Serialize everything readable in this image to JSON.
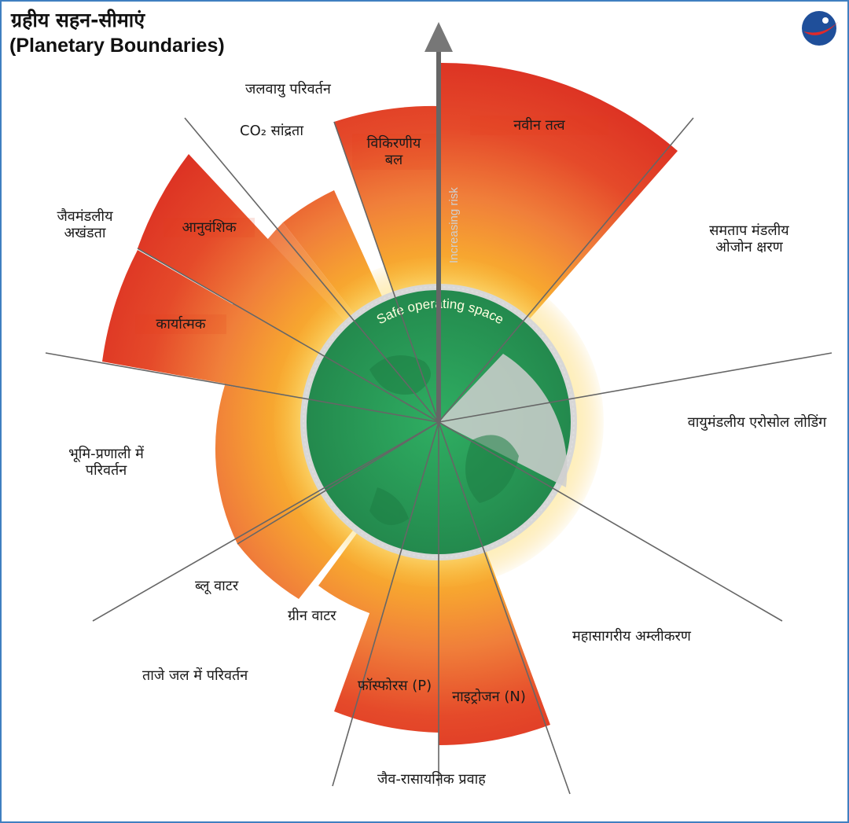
{
  "title": {
    "hindi": "ग्रहीय सहन-सीमाएं",
    "english": "(Planetary Boundaries)"
  },
  "logo_icon": "brand-logo-icon",
  "center_labels": {
    "safe_space": "Safe operating space",
    "risk_axis": "Increasing risk"
  },
  "boundaries": {
    "climate_change": "जलवायु परिवर्तन",
    "co2": "CO₂ सांद्रता",
    "radiative": "विकिरणीय बल",
    "novel_entities": "नवीन तत्व",
    "ozone": "समताप मंडलीय ओजोन क्षरण",
    "aerosol": "वायुमंडलीय एरोसोल लोडिंग",
    "ocean_acid": "महासागरीय अम्लीकरण",
    "biochemical": "जैव-रासायनिक प्रवाह",
    "nitrogen": "नाइट्रोजन (N)",
    "phosphorus": "फॉस्फोरस (P)",
    "freshwater": "ताजे जल में परिवर्तन",
    "green_water": "ग्रीन वाटर",
    "blue_water": "ब्लू वाटर",
    "land_system": "भूमि-प्रणाली में परिवर्तन",
    "biosphere": "जैवमंडलीय अखंडता",
    "genetic": "आनुवंशिक",
    "functional": "कार्यात्मक"
  },
  "colors": {
    "safe_green": "#2aa05a",
    "zone_yellow": "#f9b233",
    "zone_orange": "#f07f3a",
    "zone_red": "#e03426",
    "frame_blue": "#3f7fc0"
  }
}
